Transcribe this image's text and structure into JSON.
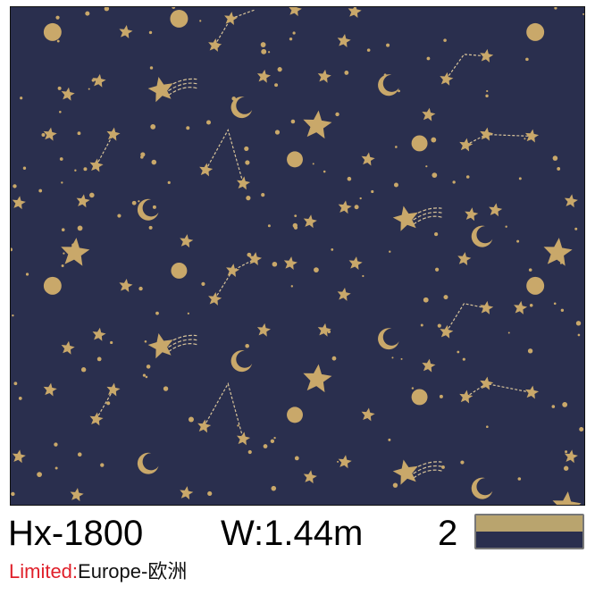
{
  "product": {
    "code": "Hx-1800",
    "width": "W:1.44m",
    "color_count": "2",
    "limited_label": "Limited:",
    "limited_value": "Europe-欧洲"
  },
  "pattern": {
    "description_icons": [
      "star-icon",
      "moon-icon",
      "shooting-star-icon",
      "constellation",
      "dot"
    ],
    "colors": {
      "background": "#2a2f4e",
      "gold": "#c9a86a"
    }
  },
  "swatch_colors": [
    "#b9a46e",
    "#2a2f4e"
  ]
}
